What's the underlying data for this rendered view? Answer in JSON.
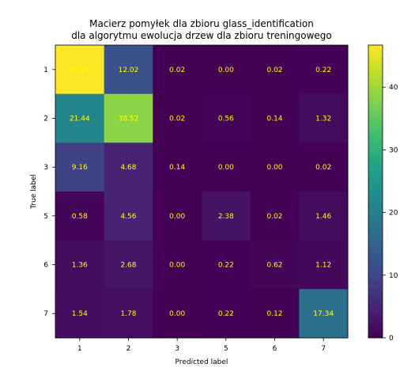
{
  "chart_data": {
    "type": "heatmap",
    "title_line1": "Macierz pomyłek dla zbioru glass_identification",
    "title_line2": "dla algorytmu ewolucja drzew dla zbioru treningowego",
    "xlabel": "Predicted label",
    "ylabel": "True label",
    "x_categories": [
      "1",
      "2",
      "3",
      "5",
      "6",
      "7"
    ],
    "y_categories": [
      "1",
      "2",
      "3",
      "5",
      "6",
      "7"
    ],
    "values": [
      [
        46.72,
        12.02,
        0.02,
        0.0,
        0.02,
        0.22
      ],
      [
        21.44,
        38.52,
        0.02,
        0.56,
        0.14,
        1.32
      ],
      [
        9.16,
        4.68,
        0.14,
        0.0,
        0.0,
        0.02
      ],
      [
        0.58,
        4.56,
        0.0,
        2.38,
        0.02,
        1.46
      ],
      [
        1.36,
        2.68,
        0.0,
        0.22,
        0.62,
        1.12
      ],
      [
        1.54,
        1.78,
        0.0,
        0.22,
        0.12,
        17.34
      ]
    ],
    "value_labels": [
      [
        "46.72",
        "12.02",
        "0.02",
        "0.00",
        "0.02",
        "0.22"
      ],
      [
        "21.44",
        "38.52",
        "0.02",
        "0.56",
        "0.14",
        "1.32"
      ],
      [
        "9.16",
        "4.68",
        "0.14",
        "0.00",
        "0.00",
        "0.02"
      ],
      [
        "0.58",
        "4.56",
        "0.00",
        "2.38",
        "0.02",
        "1.46"
      ],
      [
        "1.36",
        "2.68",
        "0.00",
        "0.22",
        "0.62",
        "1.12"
      ],
      [
        "1.54",
        "1.78",
        "0.00",
        "0.22",
        "0.12",
        "17.34"
      ]
    ],
    "colormap": "viridis",
    "color_range": [
      0,
      46.72
    ],
    "colorbar_ticks": [
      "0",
      "10",
      "20",
      "30",
      "40"
    ],
    "colorbar_tick_values": [
      0,
      10,
      20,
      30,
      40
    ],
    "text_color": "#ffff00"
  }
}
